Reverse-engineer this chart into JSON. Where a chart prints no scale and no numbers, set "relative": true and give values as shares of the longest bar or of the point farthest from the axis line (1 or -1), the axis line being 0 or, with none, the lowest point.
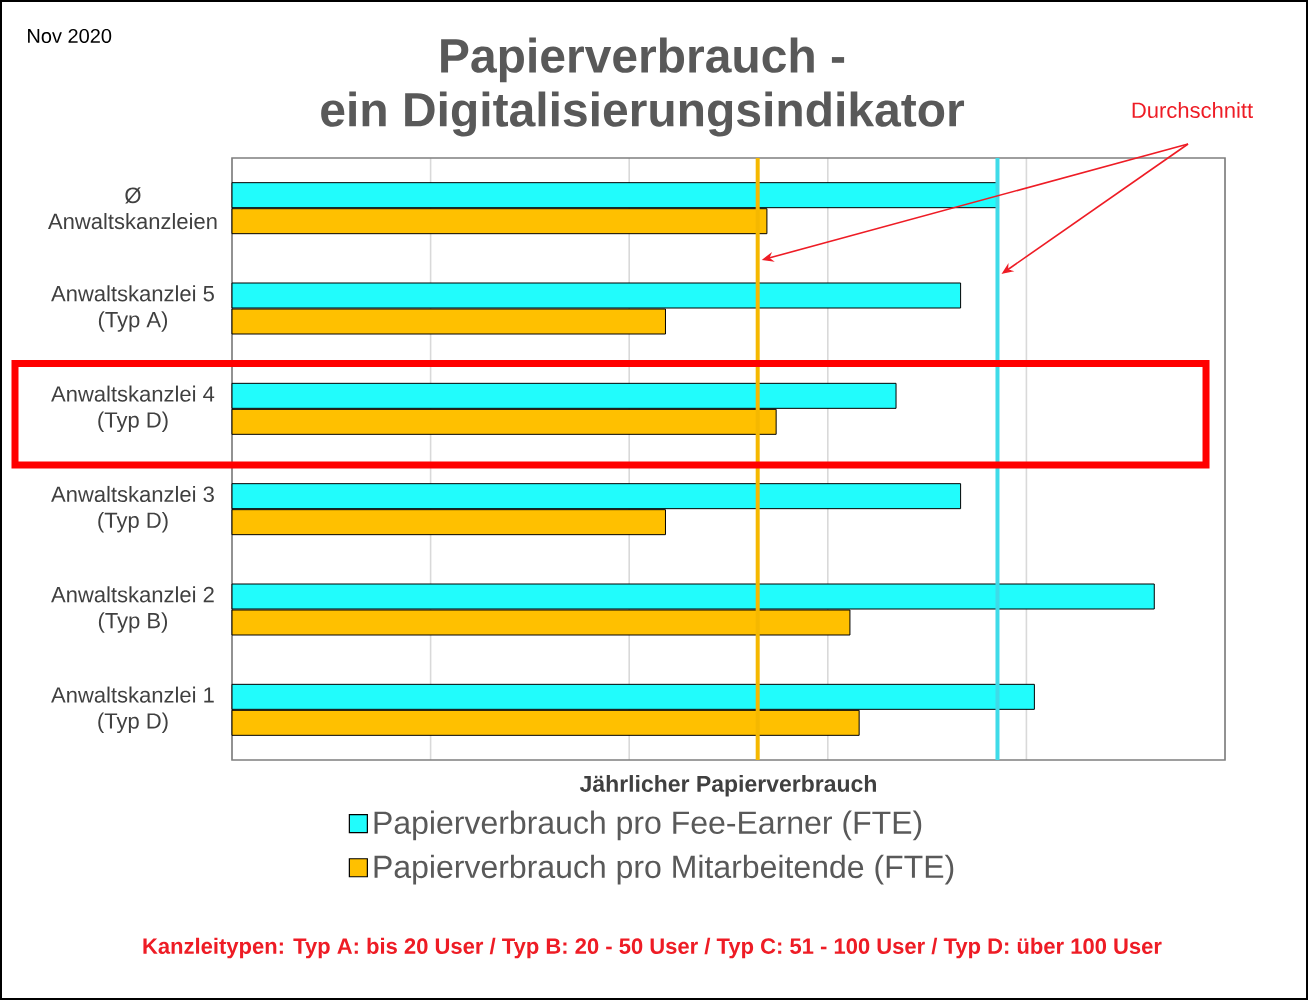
{
  "chart_data": {
    "type": "bar",
    "orientation": "horizontal",
    "title": "Papierverbrauch -",
    "subtitle": "ein Digitalisierungsindikator",
    "xlabel": "Jährlicher Papierverbrauch",
    "categories": [
      "Ø Anwaltskanzleien",
      "Anwaltskanzlei 5 (Typ A)",
      "Anwaltskanzlei 4 (Typ D)",
      "Anwaltskanzlei 3 (Typ D)",
      "Anwaltskanzlei 2 (Typ B)",
      "Anwaltskanzlei 1 (Typ D)"
    ],
    "series": [
      {
        "name": "Papierverbrauch pro Fee-Earner (FTE)",
        "color": "#21fcfc",
        "values": [
          0.83,
          0.79,
          0.72,
          0.79,
          1,
          0.87
        ]
      },
      {
        "name": "Papierverbrauch pro Mitarbeitende (FTE)",
        "color": "#ffc000",
        "values": [
          0.58,
          0.47,
          0.59,
          0.47,
          0.67,
          0.68
        ]
      }
    ],
    "relative": true,
    "ref_lines": [
      {
        "axis": "x",
        "value": 0.57,
        "color": "#f5b800"
      },
      {
        "axis": "x",
        "value": 0.83,
        "color": "#3fdbe8"
      }
    ],
    "annotations": [
      "Nov 2020",
      "Durchschnitt",
      "Kanzleitypen: Typ A: bis 20 User / Typ B: 20 - 50 User / Typ C: 51 - 100 User / Typ D: über 100 User"
    ],
    "grid": "x",
    "legend": "bottom",
    "tick_labels": "y"
  }
}
